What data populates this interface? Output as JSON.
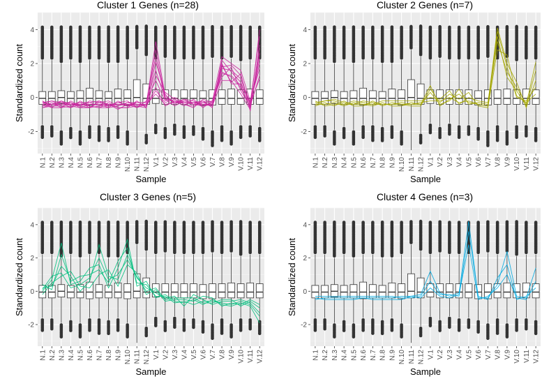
{
  "chart_data": {
    "type": "boxplot_with_lines",
    "categories": [
      "N.1",
      "N.2",
      "N.3",
      "N.4",
      "N.5",
      "N.6",
      "N.7",
      "N.8",
      "N.9",
      "N.10",
      "N.11",
      "N.12",
      "V.1",
      "V.2",
      "V.3",
      "V.4",
      "V.5",
      "V.6",
      "V.7",
      "V.8",
      "V.9",
      "V.10",
      "V.11",
      "V.12"
    ],
    "xlabel": "Sample",
    "ylabel": "Standardized count",
    "ylim": [
      -3.3,
      5.0
    ],
    "yticks": [
      -2,
      0,
      2,
      4
    ],
    "grid": true,
    "boxes": {
      "q1": [
        -0.4,
        -0.4,
        -0.35,
        -0.4,
        -0.4,
        -0.45,
        -0.4,
        -0.4,
        -0.4,
        -0.45,
        -0.4,
        -0.4,
        -0.35,
        -0.4,
        -0.4,
        -0.4,
        -0.4,
        -0.45,
        -0.45,
        -0.4,
        -0.4,
        -0.4,
        -0.4,
        -0.4
      ],
      "median": [
        -0.05,
        -0.05,
        0.0,
        -0.05,
        -0.05,
        -0.05,
        -0.05,
        -0.05,
        -0.05,
        -0.05,
        0.0,
        -0.05,
        -0.05,
        -0.05,
        -0.05,
        -0.05,
        -0.05,
        -0.05,
        -0.05,
        -0.05,
        -0.05,
        -0.05,
        -0.05,
        -0.05
      ],
      "q3": [
        0.35,
        0.35,
        0.4,
        0.35,
        0.4,
        0.55,
        0.4,
        0.35,
        0.5,
        0.45,
        1.05,
        0.8,
        0.45,
        0.45,
        0.45,
        0.45,
        0.45,
        0.4,
        0.45,
        0.45,
        0.5,
        0.45,
        0.5,
        0.45
      ],
      "whisker_low": [
        -1.6,
        -1.6,
        -1.9,
        -1.7,
        -1.9,
        -1.6,
        -1.6,
        -1.7,
        -1.6,
        -1.9,
        -3.1,
        -2.1,
        -1.5,
        -1.7,
        -1.5,
        -1.6,
        -1.6,
        -1.7,
        -1.9,
        -1.6,
        -1.9,
        -1.6,
        -1.6,
        -1.7
      ],
      "whisker_high": [
        2.2,
        2.2,
        2.0,
        2.2,
        2.0,
        2.2,
        2.2,
        2.0,
        2.0,
        2.2,
        2.8,
        2.4,
        2.2,
        2.3,
        2.2,
        2.2,
        2.2,
        2.2,
        2.3,
        2.2,
        2.3,
        2.1,
        2.2,
        2.2
      ],
      "outlier_low_min": [
        -2.4,
        -2.3,
        -2.8,
        -2.4,
        -2.8,
        -2.4,
        -2.6,
        -2.6,
        -2.4,
        -2.8,
        -3.1,
        -2.7,
        -2.1,
        -2.4,
        -2.2,
        -2.4,
        -2.2,
        -2.5,
        -2.9,
        -2.6,
        -2.8,
        -2.4,
        -2.3,
        -2.6
      ],
      "outlier_high_max": [
        4.2,
        4.2,
        4.2,
        4.2,
        4.2,
        4.2,
        4.2,
        4.2,
        4.2,
        4.2,
        4.2,
        4.2,
        4.2,
        4.2,
        4.2,
        4.2,
        4.2,
        4.2,
        4.2,
        4.2,
        4.2,
        4.2,
        4.2,
        4.2
      ]
    },
    "panels": [
      {
        "title": "Cluster 1 Genes (n=28)",
        "color": "#C9279E",
        "series": [
          {
            "values": [
              -0.3,
              -0.2,
              -0.5,
              -0.4,
              -0.5,
              -0.6,
              -0.3,
              -0.5,
              -0.4,
              -0.5,
              -0.3,
              -0.3,
              1.6,
              -0.1,
              -0.2,
              -0.3,
              -0.4,
              -0.2,
              -0.4,
              1.4,
              1.3,
              0.7,
              -0.6,
              2.6
            ]
          },
          {
            "values": [
              -0.6,
              -0.4,
              -0.3,
              -0.6,
              -0.4,
              -0.5,
              -0.6,
              -0.4,
              -0.7,
              -0.4,
              -0.5,
              -0.4,
              2.8,
              0.0,
              -0.3,
              -0.2,
              -0.3,
              -0.4,
              -0.5,
              1.7,
              1.6,
              1.1,
              -0.3,
              3.6
            ]
          },
          {
            "values": [
              -0.2,
              -0.5,
              -0.4,
              -0.3,
              -0.6,
              -0.4,
              -0.4,
              -0.6,
              -0.5,
              -0.3,
              -0.4,
              -0.5,
              0.4,
              -0.3,
              -0.1,
              -0.4,
              -0.5,
              -0.3,
              -0.2,
              1.2,
              1.8,
              0.4,
              -0.5,
              1.3
            ]
          },
          {
            "values": [
              -0.4,
              -0.6,
              -0.2,
              -0.5,
              -0.3,
              -0.6,
              -0.5,
              -0.3,
              -0.6,
              -0.6,
              -0.2,
              -0.6,
              2.1,
              0.2,
              -0.4,
              -0.1,
              -0.2,
              -0.5,
              -0.3,
              1.9,
              0.9,
              1.4,
              -0.8,
              3.1
            ]
          },
          {
            "values": [
              -0.5,
              -0.3,
              -0.6,
              -0.2,
              -0.5,
              -0.3,
              -0.2,
              -0.5,
              -0.3,
              -0.4,
              -0.6,
              -0.2,
              1.0,
              -0.2,
              0.0,
              -0.3,
              -0.3,
              -0.2,
              -0.6,
              2.2,
              1.5,
              0.9,
              -0.4,
              2.0
            ]
          },
          {
            "values": [
              -0.3,
              -0.4,
              -0.4,
              -0.4,
              -0.4,
              -0.4,
              -0.4,
              -0.4,
              -0.4,
              -0.4,
              -0.4,
              -0.4,
              3.3,
              0.1,
              -0.3,
              -0.3,
              -0.4,
              -0.4,
              -0.4,
              1.5,
              1.2,
              0.6,
              -0.6,
              4.0
            ]
          },
          {
            "values": [
              -0.6,
              -0.5,
              -0.5,
              -0.6,
              -0.2,
              -0.5,
              -0.6,
              -0.6,
              -0.2,
              -0.5,
              -0.4,
              -0.5,
              0.6,
              -0.5,
              -0.2,
              -0.5,
              -0.1,
              -0.6,
              -0.2,
              2.4,
              2.0,
              1.6,
              -0.2,
              1.7
            ]
          },
          {
            "values": [
              -0.4,
              -0.2,
              -0.3,
              -0.3,
              -0.5,
              -0.2,
              -0.3,
              -0.2,
              -0.5,
              -0.3,
              -0.3,
              -0.3,
              2.4,
              -0.1,
              -0.5,
              -0.2,
              -0.3,
              -0.3,
              -0.5,
              1.0,
              1.0,
              0.2,
              -0.7,
              2.9
            ]
          },
          {
            "values": [
              -0.2,
              -0.6,
              -0.6,
              -0.5,
              -0.6,
              -0.6,
              -0.2,
              -0.4,
              -0.6,
              -0.6,
              -0.5,
              -0.6,
              1.3,
              0.3,
              -0.1,
              -0.4,
              -0.6,
              -0.1,
              -0.3,
              1.8,
              1.9,
              1.3,
              -0.5,
              2.3
            ]
          },
          {
            "values": [
              -0.5,
              -0.4,
              -0.2,
              -0.4,
              -0.3,
              -0.3,
              -0.5,
              -0.5,
              -0.3,
              -0.2,
              -0.6,
              -0.4,
              0.2,
              -0.4,
              -0.3,
              -0.1,
              -0.4,
              -0.5,
              -0.4,
              2.0,
              0.8,
              0.8,
              -0.3,
              1.1
            ]
          }
        ]
      },
      {
        "title": "Cluster 2 Genes (n=7)",
        "color": "#A3A500",
        "series": [
          {
            "values": [
              -0.3,
              -0.2,
              -0.1,
              -0.3,
              -0.4,
              -0.2,
              -0.3,
              -0.4,
              -0.4,
              -0.3,
              -0.4,
              -0.3,
              -0.2,
              -0.2,
              0.0,
              -0.3,
              -0.2,
              -0.4,
              -0.5,
              3.3,
              1.5,
              0.6,
              -0.4,
              2.1
            ]
          },
          {
            "values": [
              -0.4,
              -0.4,
              -0.3,
              -0.5,
              -0.3,
              -0.4,
              -0.5,
              -0.3,
              -0.5,
              -0.5,
              -0.3,
              -0.4,
              0.3,
              -0.4,
              -0.2,
              0.5,
              -0.4,
              -0.3,
              -0.4,
              4.1,
              2.0,
              0.9,
              -0.6,
              1.0
            ]
          },
          {
            "values": [
              -0.5,
              -0.3,
              -0.5,
              -0.2,
              -0.5,
              -0.5,
              -0.2,
              -0.5,
              -0.3,
              -0.4,
              -0.5,
              -0.5,
              0.5,
              -0.3,
              0.2,
              -0.1,
              0.3,
              -0.5,
              -0.6,
              2.8,
              2.5,
              0.1,
              -0.3,
              0.2
            ]
          },
          {
            "values": [
              -0.2,
              -0.5,
              -0.4,
              -0.4,
              -0.2,
              -0.3,
              -0.4,
              -0.2,
              -0.2,
              -0.2,
              -0.2,
              -0.2,
              0.0,
              -0.1,
              0.4,
              -0.4,
              0.0,
              -0.2,
              -0.3,
              3.6,
              1.2,
              0.4,
              -0.5,
              1.6
            ]
          },
          {
            "values": [
              -0.4,
              -0.2,
              -0.2,
              -0.4,
              -0.4,
              -0.4,
              -0.4,
              -0.4,
              -0.4,
              -0.4,
              -0.4,
              -0.4,
              0.7,
              -0.5,
              -0.1,
              0.2,
              -0.3,
              -0.4,
              -0.5,
              3.9,
              1.8,
              0.0,
              -0.2,
              0.6
            ]
          }
        ]
      },
      {
        "title": "Cluster 3 Genes (n=5)",
        "color": "#00BF7D",
        "series": [
          {
            "values": [
              0.0,
              0.7,
              2.9,
              0.4,
              0.6,
              1.4,
              1.6,
              0.2,
              1.4,
              3.1,
              0.3,
              0.6,
              -0.4,
              -0.2,
              -0.6,
              -0.7,
              -0.5,
              -0.8,
              -0.5,
              -0.8,
              -0.9,
              -0.7,
              -0.9,
              -1.9
            ]
          },
          {
            "values": [
              0.2,
              0.3,
              1.5,
              0.9,
              0.0,
              0.6,
              2.8,
              0.9,
              0.7,
              2.2,
              0.8,
              0.2,
              -0.1,
              -0.4,
              -0.3,
              -0.9,
              -0.2,
              -0.5,
              -0.8,
              -0.6,
              -0.6,
              -0.5,
              -0.7,
              -1.3
            ]
          },
          {
            "values": [
              -0.2,
              0.5,
              0.9,
              1.2,
              0.3,
              0.2,
              1.0,
              1.3,
              0.3,
              1.6,
              1.1,
              -0.2,
              0.1,
              -0.6,
              -0.5,
              -0.5,
              -0.6,
              -0.3,
              -0.4,
              -0.9,
              -0.7,
              -0.8,
              -0.5,
              -0.8
            ]
          },
          {
            "values": [
              0.4,
              0.1,
              2.2,
              0.6,
              0.9,
              1.0,
              1.3,
              0.5,
              1.8,
              2.6,
              0.5,
              0.4,
              -0.3,
              -0.3,
              -0.7,
              -0.6,
              -0.8,
              -0.6,
              -0.6,
              -0.7,
              -0.8,
              -0.6,
              -0.8,
              -1.5
            ]
          },
          {
            "values": [
              0.1,
              0.9,
              1.1,
              0.2,
              0.4,
              0.8,
              2.0,
              0.7,
              1.0,
              1.9,
              0.9,
              0.0,
              0.2,
              -0.5,
              -0.4,
              -0.4,
              -0.4,
              -0.7,
              -0.7,
              -0.5,
              -0.5,
              -0.9,
              -0.6,
              -1.0
            ]
          }
        ]
      },
      {
        "title": "Cluster 4 Genes (n=3)",
        "color": "#00A9E0",
        "series": [
          {
            "values": [
              -0.5,
              -0.4,
              -0.4,
              -0.4,
              -0.4,
              -0.4,
              -0.4,
              -0.4,
              -0.4,
              -0.3,
              -0.3,
              -0.2,
              1.2,
              -0.1,
              -0.3,
              -0.1,
              4.2,
              -0.4,
              -0.4,
              0.4,
              2.4,
              -0.3,
              -0.4,
              1.4
            ]
          },
          {
            "values": [
              -0.3,
              -0.3,
              -0.3,
              -0.3,
              -0.3,
              -0.3,
              -0.3,
              -0.3,
              -0.3,
              -0.4,
              -0.4,
              -0.3,
              0.6,
              -0.2,
              -0.2,
              -0.3,
              3.6,
              -0.3,
              -0.5,
              0.8,
              1.6,
              -0.5,
              -0.3,
              0.2
            ]
          },
          {
            "values": [
              -0.4,
              -0.5,
              -0.5,
              -0.5,
              -0.5,
              -0.4,
              -0.5,
              -0.5,
              -0.5,
              -0.5,
              -0.3,
              -0.4,
              0.2,
              -0.3,
              -0.4,
              -0.2,
              2.8,
              -0.5,
              -0.3,
              0.2,
              1.0,
              -0.4,
              -0.5,
              0.6
            ]
          }
        ]
      }
    ]
  }
}
